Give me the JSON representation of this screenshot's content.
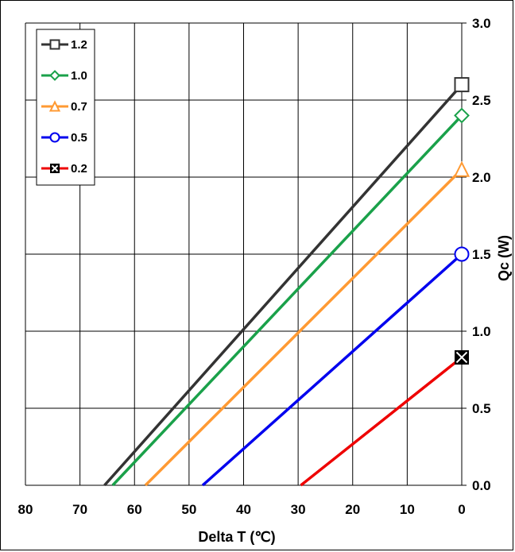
{
  "chart_data": {
    "type": "line",
    "xlabel": "Delta T (℃)",
    "ylabel": "Qc (W)",
    "xlim": [
      80,
      0
    ],
    "ylim": [
      0,
      3
    ],
    "x_reversed": true,
    "y_axis_side": "right",
    "grid": true,
    "legend_placement": "top-left",
    "x_ticks": [
      "80",
      "70",
      "60",
      "50",
      "40",
      "30",
      "20",
      "10",
      "0"
    ],
    "y_ticks": [
      "0.0",
      "0.5",
      "1.0",
      "1.5",
      "2.0",
      "2.5",
      "3.0"
    ],
    "series": [
      {
        "name": "1.2",
        "color": "#333333",
        "marker": "square",
        "points": [
          [
            65.5,
            0
          ],
          [
            0,
            2.6
          ]
        ]
      },
      {
        "name": "1.0",
        "color": "#1aa14a",
        "marker": "diamond",
        "points": [
          [
            64.0,
            0
          ],
          [
            0,
            2.4
          ]
        ]
      },
      {
        "name": "0.7",
        "color": "#ff9a33",
        "marker": "triangle",
        "points": [
          [
            58.0,
            0
          ],
          [
            0,
            2.05
          ]
        ]
      },
      {
        "name": "0.5",
        "color": "#0000ee",
        "marker": "circle",
        "points": [
          [
            47.5,
            0
          ],
          [
            0,
            1.5
          ]
        ]
      },
      {
        "name": "0.2",
        "color": "#ee0000",
        "marker": "x-square",
        "points": [
          [
            29.5,
            0
          ],
          [
            0,
            0.83
          ]
        ]
      }
    ]
  }
}
